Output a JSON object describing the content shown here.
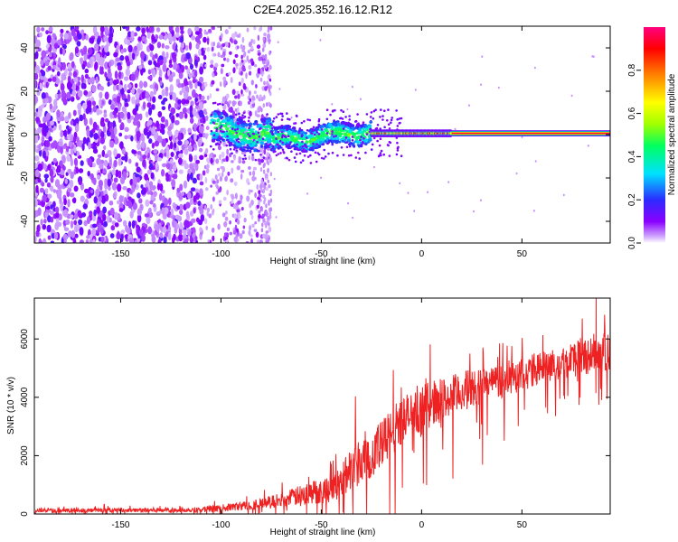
{
  "title": "C2E4.2025.352.16.12.R12",
  "chart_data": [
    {
      "type": "heatmap",
      "name": "spectrogram",
      "xlabel": "Height of straight line (km)",
      "ylabel": "Frequency (Hz)",
      "xlim": [
        -193,
        94
      ],
      "ylim": [
        -50,
        50
      ],
      "xticks": [
        -150,
        -100,
        -50,
        0,
        50
      ],
      "xtick_labels": [
        "-150",
        "-100",
        "-50",
        "0",
        "50"
      ],
      "yticks": [
        -40,
        -20,
        0,
        20,
        40
      ],
      "ytick_labels": [
        "-40",
        "-20",
        "0",
        "20",
        "40"
      ],
      "grid": false,
      "regions": [
        {
          "name": "scattered noise (dense)",
          "x": [
            -193,
            -108
          ],
          "freq": [
            -50,
            50
          ],
          "amplitude": 0.15
        },
        {
          "name": "scattered noise (sparse)",
          "x": [
            -108,
            -75
          ],
          "freq": [
            -50,
            50
          ],
          "amplitude": 0.08
        },
        {
          "name": "emerging carrier",
          "x": [
            -105,
            -25
          ],
          "freq": [
            -8,
            8
          ],
          "amplitude": 0.35
        },
        {
          "name": "carrier line",
          "x": [
            -25,
            15
          ],
          "freq": [
            -2,
            2
          ],
          "amplitude": 0.75
        },
        {
          "name": "strong carrier line",
          "x": [
            15,
            94
          ],
          "freq": [
            -1,
            1
          ],
          "amplitude": 0.95
        }
      ]
    },
    {
      "type": "colorbar",
      "name": "amplitude colorbar",
      "label": "Normalized spectral amplitude",
      "range": [
        0,
        1
      ],
      "ticks": [
        0.0,
        0.2,
        0.4,
        0.6,
        0.8
      ],
      "tick_labels": [
        "0.0",
        "0.2",
        "0.4",
        "0.6",
        "0.8"
      ],
      "colors": [
        "#ffffff",
        "#8a00ff",
        "#3a3aff",
        "#00e0ff",
        "#00ff60",
        "#a0ff00",
        "#ffff00",
        "#ff8000",
        "#ff0000",
        "#ff0080"
      ]
    },
    {
      "type": "line",
      "name": "snr",
      "xlabel": "Height of straight line (km)",
      "ylabel": "SNR (10 * v/v)",
      "xlim": [
        -193,
        94
      ],
      "ylim": [
        0,
        7400
      ],
      "xticks": [
        -150,
        -100,
        -50,
        0,
        50
      ],
      "xtick_labels": [
        "-150",
        "-100",
        "-50",
        "0",
        "50"
      ],
      "yticks": [
        0,
        2000,
        4000,
        6000
      ],
      "ytick_labels": [
        "0",
        "2000",
        "4000",
        "6000"
      ],
      "grid": false,
      "color": "#ee2222",
      "envelope_x": [
        -193,
        -150,
        -110,
        -100,
        -90,
        -80,
        -70,
        -60,
        -50,
        -45,
        -40,
        -35,
        -30,
        -25,
        -20,
        -15,
        -10,
        -5,
        0,
        5,
        10,
        15,
        20,
        30,
        40,
        50,
        60,
        70,
        80,
        90,
        94
      ],
      "envelope_mean": [
        120,
        130,
        150,
        200,
        270,
        360,
        470,
        650,
        800,
        900,
        1100,
        1600,
        1900,
        2100,
        2300,
        2800,
        3200,
        3400,
        3600,
        3800,
        3900,
        4000,
        4200,
        4400,
        4600,
        4800,
        5000,
        5200,
        5400,
        5600,
        5600
      ],
      "envelope_spread": [
        70,
        70,
        90,
        120,
        150,
        200,
        250,
        350,
        450,
        500,
        600,
        800,
        900,
        900,
        900,
        900,
        900,
        800,
        800,
        800,
        750,
        750,
        700,
        650,
        600,
        600,
        600,
        600,
        650,
        700,
        700
      ],
      "peak": {
        "x": 87,
        "y": 7400
      }
    }
  ]
}
